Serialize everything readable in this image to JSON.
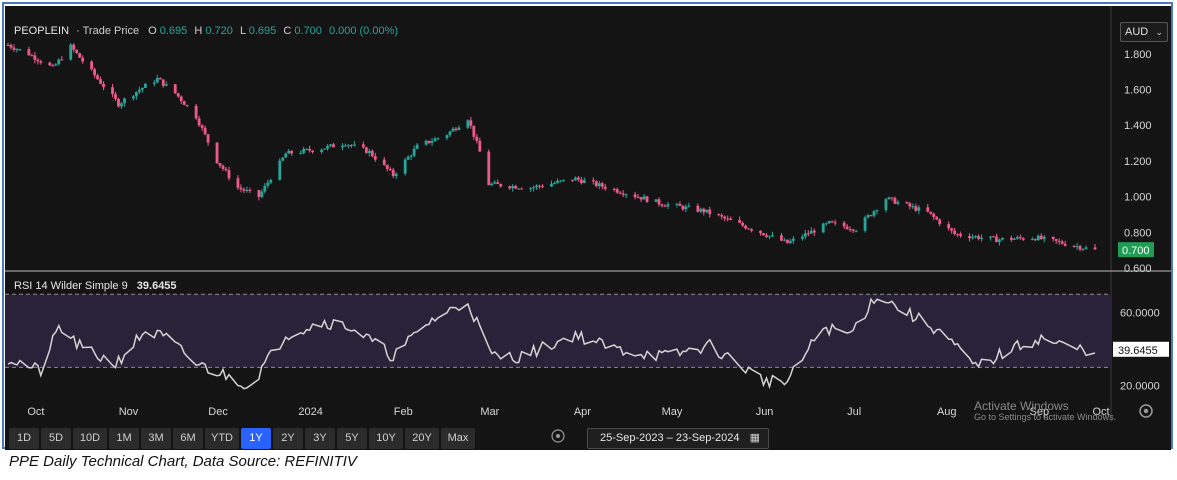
{
  "caption": "PPE Daily Technical Chart, Data Source: REFINITIV",
  "legend": {
    "symbol": "PEOPLEIN",
    "trade_price": "· Trade Price",
    "o_label": "O",
    "o_value": "0.695",
    "h_label": "H",
    "h_value": "0.720",
    "l_label": "L",
    "l_value": "0.695",
    "c_label": "C",
    "c_value": "0.700",
    "change": "0.000 (0.00%)"
  },
  "currency": "AUD",
  "rsi_legend": {
    "label": "RSI 14 Wilder Simple 9",
    "value": "39.6455"
  },
  "price_axis": {
    "ticks": [
      "1.800",
      "1.600",
      "1.400",
      "1.200",
      "1.000",
      "0.800",
      "0.600"
    ],
    "last_price": "0.700"
  },
  "rsi_axis": {
    "ticks": [
      "60.0000",
      "20.0000"
    ],
    "last_value": "39.6455"
  },
  "x_axis_labels": [
    "Oct",
    "Nov",
    "Dec",
    "2024",
    "Feb",
    "Mar",
    "Apr",
    "May",
    "Jun",
    "Jul",
    "Aug",
    "Sep",
    "Oct"
  ],
  "timeframes": [
    "1D",
    "5D",
    "10D",
    "1M",
    "3M",
    "6M",
    "YTD",
    "1Y",
    "2Y",
    "3Y",
    "5Y",
    "10Y",
    "20Y",
    "Max"
  ],
  "active_timeframe": "1Y",
  "date_range": {
    "start": "25-Sep-2023",
    "separator": "–",
    "end": "23-Sep-2024"
  },
  "watermark": {
    "line1": "Activate Windows",
    "line2": "Go to Settings to activate Windows."
  },
  "colors": {
    "up": "#26a69a",
    "down": "#ef5a8a",
    "rsi_line": "#d4d4d4",
    "rsi_band": "#2a2238",
    "bg": "#141414",
    "active_btn": "#2962ff",
    "last_price_badge": "#1f9d55"
  },
  "chart_data": {
    "type": "candlestick",
    "title": "PEOPLEIN",
    "x_range": [
      "2023-09-25",
      "2024-09-23"
    ],
    "ylim": [
      0.6,
      1.9
    ],
    "price_anchors": [
      [
        "2023-09-25",
        1.85
      ],
      [
        "2023-10-02",
        1.8
      ],
      [
        "2023-10-10",
        1.72
      ],
      [
        "2023-10-16",
        1.84
      ],
      [
        "2023-10-24",
        1.68
      ],
      [
        "2023-11-01",
        1.52
      ],
      [
        "2023-11-08",
        1.6
      ],
      [
        "2023-11-14",
        1.66
      ],
      [
        "2023-11-20",
        1.58
      ],
      [
        "2023-11-27",
        1.45
      ],
      [
        "2023-12-04",
        1.2
      ],
      [
        "2023-12-11",
        1.05
      ],
      [
        "2023-12-18",
        1.0
      ],
      [
        "2023-12-27",
        1.24
      ],
      [
        "2024-01-08",
        1.27
      ],
      [
        "2024-01-16",
        1.3
      ],
      [
        "2024-01-24",
        1.25
      ],
      [
        "2024-02-01",
        1.12
      ],
      [
        "2024-02-09",
        1.28
      ],
      [
        "2024-02-19",
        1.35
      ],
      [
        "2024-02-26",
        1.44
      ],
      [
        "2024-03-01",
        1.25
      ],
      [
        "2024-03-04",
        1.07
      ],
      [
        "2024-03-18",
        1.05
      ],
      [
        "2024-04-02",
        1.1
      ],
      [
        "2024-04-17",
        1.03
      ],
      [
        "2024-05-01",
        0.96
      ],
      [
        "2024-05-15",
        0.92
      ],
      [
        "2024-06-03",
        0.8
      ],
      [
        "2024-06-12",
        0.74
      ],
      [
        "2024-06-26",
        0.85
      ],
      [
        "2024-07-05",
        0.82
      ],
      [
        "2024-07-15",
        0.99
      ],
      [
        "2024-07-29",
        0.91
      ],
      [
        "2024-08-07",
        0.79
      ],
      [
        "2024-08-21",
        0.76
      ],
      [
        "2024-09-03",
        0.77
      ],
      [
        "2024-09-12",
        0.74
      ],
      [
        "2024-09-23",
        0.7
      ]
    ],
    "rsi_series": {
      "name": "RSI 14 Wilder Simple 9",
      "ylim": [
        10,
        80
      ],
      "overbought": 70,
      "oversold": 30,
      "anchors": [
        [
          "2023-09-25",
          35
        ],
        [
          "2023-10-06",
          28
        ],
        [
          "2023-10-12",
          52
        ],
        [
          "2023-10-20",
          40
        ],
        [
          "2023-10-31",
          32
        ],
        [
          "2023-11-10",
          50
        ],
        [
          "2023-11-17",
          46
        ],
        [
          "2023-11-27",
          32
        ],
        [
          "2023-12-08",
          25
        ],
        [
          "2023-12-15",
          20
        ],
        [
          "2023-12-27",
          48
        ],
        [
          "2024-01-09",
          55
        ],
        [
          "2024-01-18",
          52
        ],
        [
          "2024-02-01",
          36
        ],
        [
          "2024-02-13",
          55
        ],
        [
          "2024-02-26",
          66
        ],
        [
          "2024-03-05",
          36
        ],
        [
          "2024-03-15",
          36
        ],
        [
          "2024-04-02",
          48
        ],
        [
          "2024-04-15",
          40
        ],
        [
          "2024-05-03",
          36
        ],
        [
          "2024-05-17",
          42
        ],
        [
          "2024-06-04",
          23
        ],
        [
          "2024-06-12",
          22
        ],
        [
          "2024-06-24",
          52
        ],
        [
          "2024-07-03",
          48
        ],
        [
          "2024-07-12",
          70
        ],
        [
          "2024-07-24",
          58
        ],
        [
          "2024-08-02",
          50
        ],
        [
          "2024-08-14",
          30
        ],
        [
          "2024-08-26",
          40
        ],
        [
          "2024-09-05",
          46
        ],
        [
          "2024-09-16",
          40
        ],
        [
          "2024-09-23",
          39.6455
        ]
      ]
    }
  }
}
